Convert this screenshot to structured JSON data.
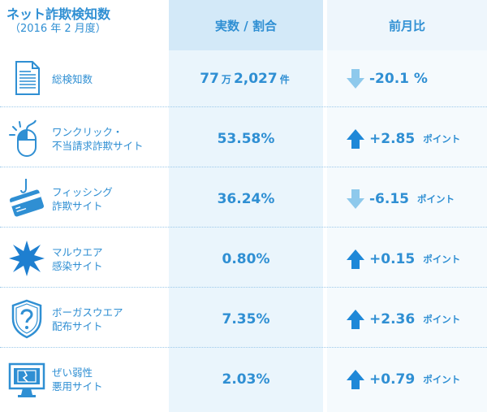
{
  "header": {
    "title_line1": "ネット詐欺検知数",
    "title_line2": "（2016 年 2 月度）",
    "col2": "実数 / 割合",
    "col3": "前月比"
  },
  "colors": {
    "accent": "#2f8fd3",
    "up_arrow": "#1e88d8",
    "down_arrow": "#8ec9ec",
    "col2_bg": "#eaf5fc",
    "col3_bg": "#f5fafd"
  },
  "rows": [
    {
      "icon": "document-icon",
      "label1": "総検知数",
      "label2": "",
      "value": "77",
      "unit1": "万",
      "value2": "2,027",
      "unit2": "件",
      "change": "-20.1 %",
      "point": "",
      "direction": "down"
    },
    {
      "icon": "mouse-click-icon",
      "label1": "ワンクリック・",
      "label2": "不当請求詐欺サイト",
      "value": "53.58%",
      "unit1": "",
      "value2": "",
      "unit2": "",
      "change": "+2.85",
      "point": "ポイント",
      "direction": "up"
    },
    {
      "icon": "credit-card-hook-icon",
      "label1": "フィッシング",
      "label2": "詐欺サイト",
      "value": "36.24%",
      "unit1": "",
      "value2": "",
      "unit2": "",
      "change": "-6.15",
      "point": "ポイント",
      "direction": "down"
    },
    {
      "icon": "malware-splat-icon",
      "label1": "マルウエア",
      "label2": "感染サイト",
      "value": "0.80%",
      "unit1": "",
      "value2": "",
      "unit2": "",
      "change": "+0.15",
      "point": "ポイント",
      "direction": "up"
    },
    {
      "icon": "question-shield-icon",
      "label1": "ボーガスウエア",
      "label2": "配布サイト",
      "value": "7.35%",
      "unit1": "",
      "value2": "",
      "unit2": "",
      "change": "+2.36",
      "point": "ポイント",
      "direction": "up"
    },
    {
      "icon": "broken-monitor-icon",
      "label1": "ぜい弱性",
      "label2": "悪用サイト",
      "value": "2.03%",
      "unit1": "",
      "value2": "",
      "unit2": "",
      "change": "+0.79",
      "point": "ポイント",
      "direction": "up"
    }
  ]
}
